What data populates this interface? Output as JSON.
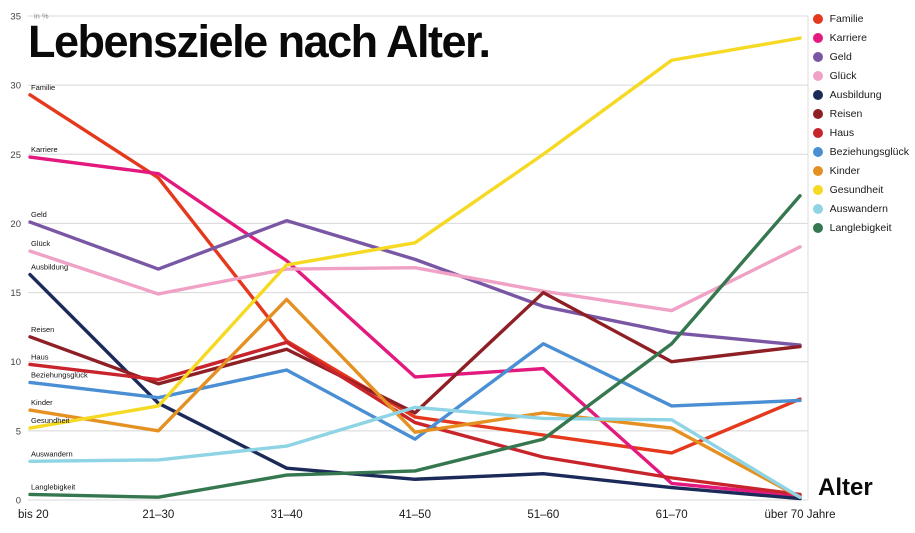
{
  "title": "Lebensziele nach Alter.",
  "unit_label": "in %",
  "xlabel": "Alter",
  "chart_data": {
    "type": "line",
    "categories": [
      "bis 20",
      "21–30",
      "31–40",
      "41–50",
      "51–60",
      "61–70",
      "über 70 Jahre"
    ],
    "ylim": [
      0,
      35
    ],
    "yticks": [
      0,
      5,
      10,
      15,
      20,
      25,
      30,
      35
    ],
    "grid": true,
    "legend_position": "top-right",
    "series": [
      {
        "name": "Familie",
        "color": "#e5391d",
        "values": [
          29.3,
          23.3,
          11.5,
          6.0,
          4.7,
          3.4,
          7.3
        ]
      },
      {
        "name": "Karriere",
        "color": "#e3197e",
        "values": [
          24.8,
          23.6,
          17.3,
          8.9,
          9.5,
          1.2,
          0.3
        ]
      },
      {
        "name": "Geld",
        "color": "#7a57a4",
        "values": [
          20.1,
          16.7,
          20.2,
          17.4,
          14.0,
          12.1,
          11.2
        ]
      },
      {
        "name": "Glück",
        "color": "#f0a2c6",
        "values": [
          18.0,
          14.9,
          16.7,
          16.8,
          15.1,
          13.7,
          18.3
        ]
      },
      {
        "name": "Ausbildung",
        "color": "#1c2a5a",
        "values": [
          16.3,
          7.0,
          2.3,
          1.5,
          1.9,
          0.9,
          0.1
        ]
      },
      {
        "name": "Reisen",
        "color": "#8e1f24",
        "values": [
          11.8,
          8.4,
          10.9,
          6.3,
          15.0,
          10.0,
          11.1
        ]
      },
      {
        "name": "Haus",
        "color": "#c8242b",
        "values": [
          9.8,
          8.7,
          11.4,
          5.6,
          3.1,
          1.6,
          0.4
        ]
      },
      {
        "name": "Beziehungsglück",
        "color": "#4a8fd3",
        "values": [
          8.5,
          7.4,
          9.4,
          4.4,
          11.3,
          6.8,
          7.2
        ]
      },
      {
        "name": "Kinder",
        "color": "#e59122",
        "values": [
          6.5,
          5.0,
          14.5,
          4.9,
          6.3,
          5.2,
          0.2
        ]
      },
      {
        "name": "Gesundheit",
        "color": "#f6d923",
        "values": [
          5.2,
          6.8,
          17.0,
          18.6,
          25.0,
          31.8,
          33.4
        ]
      },
      {
        "name": "Auswandern",
        "color": "#8ed4e4",
        "values": [
          2.8,
          2.9,
          3.9,
          6.7,
          5.9,
          5.8,
          0.2
        ]
      },
      {
        "name": "Langlebigkeit",
        "color": "#35774e",
        "values": [
          0.4,
          0.2,
          1.8,
          2.1,
          4.4,
          11.3,
          22.0
        ]
      }
    ]
  }
}
